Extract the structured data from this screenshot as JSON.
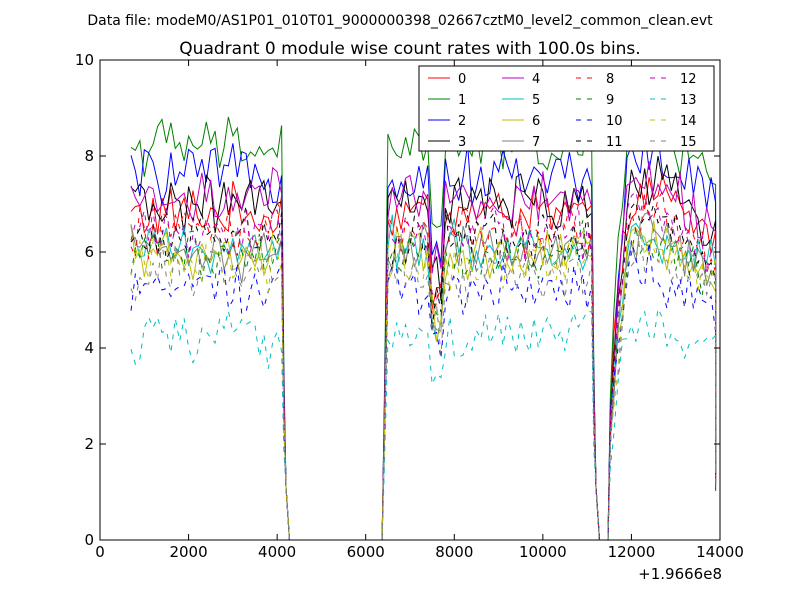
{
  "chart_data": {
    "type": "line",
    "suptitle": "Data file: modeM0/AS1P01_010T01_9000000398_02667cztM0_level2_common_clean.evt",
    "title": "Quadrant 0 module wise count rates with 100.0s bins.",
    "xlabel": "",
    "ylabel": "",
    "x_offset_label": "+1.9666e8",
    "xlim": [
      0,
      14000
    ],
    "ylim": [
      0,
      10
    ],
    "x_ticks": [
      0,
      2000,
      4000,
      6000,
      8000,
      10000,
      12000,
      14000
    ],
    "y_ticks": [
      0,
      2,
      4,
      6,
      8,
      10
    ],
    "legend_position": "top-right",
    "segments": [
      {
        "start": 700,
        "end": 4100
      },
      {
        "start": 6500,
        "end": 11100
      },
      {
        "start": 11600,
        "end": 13900
      }
    ],
    "gaps": [
      {
        "start": 4200,
        "end": 6400
      },
      {
        "start": 11200,
        "end": 11500
      }
    ],
    "series": [
      {
        "name": "0",
        "color": "#ff0000",
        "dash": "solid",
        "level": 6.8
      },
      {
        "name": "1",
        "color": "#008000",
        "dash": "solid",
        "level": 8.2
      },
      {
        "name": "2",
        "color": "#0000ff",
        "dash": "solid",
        "level": 7.6
      },
      {
        "name": "3",
        "color": "#000000",
        "dash": "solid",
        "level": 7.0
      },
      {
        "name": "4",
        "color": "#bf00bf",
        "dash": "solid",
        "level": 7.1
      },
      {
        "name": "5",
        "color": "#00bfbf",
        "dash": "solid",
        "level": 6.1
      },
      {
        "name": "6",
        "color": "#bfbf00",
        "dash": "solid",
        "level": 5.9
      },
      {
        "name": "7",
        "color": "#808080",
        "dash": "solid",
        "level": 6.0
      },
      {
        "name": "8",
        "color": "#ff0000",
        "dash": "dashed",
        "level": 6.5
      },
      {
        "name": "9",
        "color": "#008000",
        "dash": "dashed",
        "level": 6.0
      },
      {
        "name": "10",
        "color": "#0000ff",
        "dash": "dashed",
        "level": 5.3
      },
      {
        "name": "11",
        "color": "#000000",
        "dash": "dashed",
        "level": 6.3
      },
      {
        "name": "12",
        "color": "#bf00bf",
        "dash": "dashed",
        "level": 6.4
      },
      {
        "name": "13",
        "color": "#00bfbf",
        "dash": "dashed",
        "level": 4.2
      },
      {
        "name": "14",
        "color": "#bfbf00",
        "dash": "dashed",
        "level": 5.8
      },
      {
        "name": "15",
        "color": "#808080",
        "dash": "dashed",
        "level": 5.6
      }
    ]
  }
}
